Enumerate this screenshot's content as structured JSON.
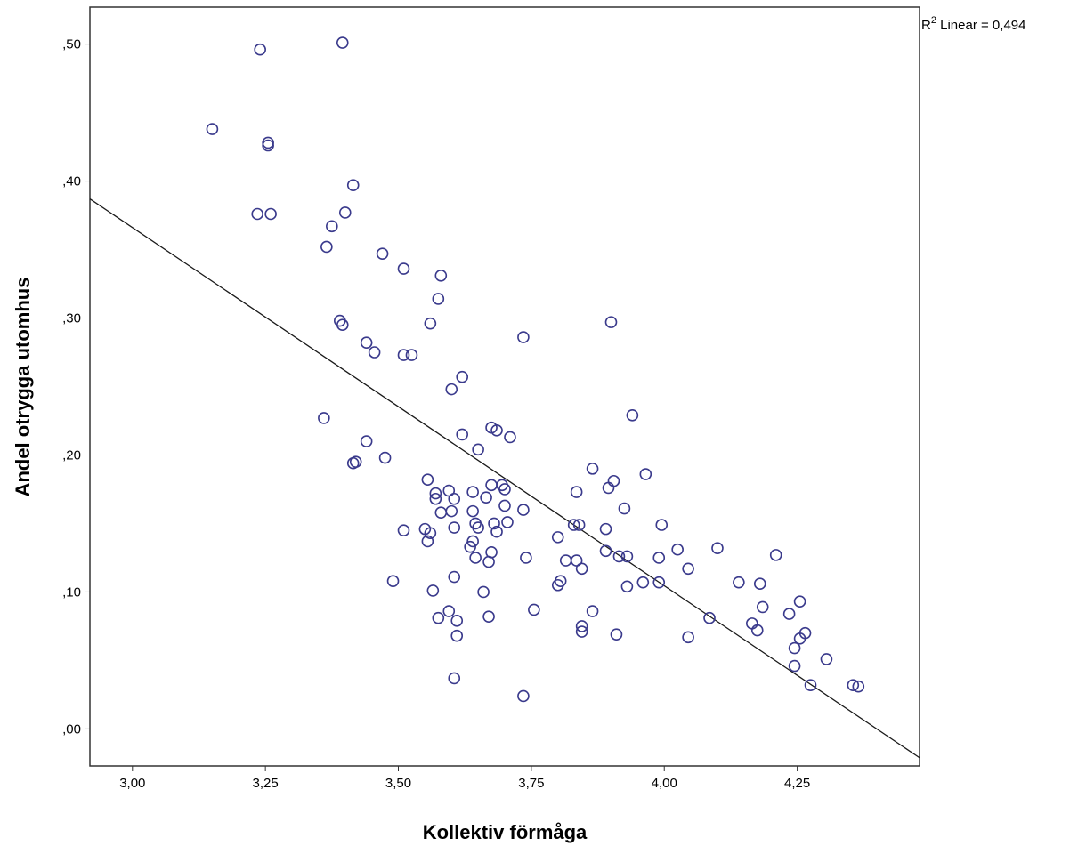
{
  "chart_data": {
    "type": "scatter",
    "xlabel": "Kollektiv förmåga",
    "ylabel": "Andel otrygga utomhus",
    "xlim": [
      2.92,
      4.48
    ],
    "ylim": [
      -0.027,
      0.527
    ],
    "x_ticks": [
      3.0,
      3.25,
      3.5,
      3.75,
      4.0,
      4.25
    ],
    "x_tick_labels": [
      "3,00",
      "3,25",
      "3,50",
      "3,75",
      "4,00",
      "4,25"
    ],
    "y_ticks": [
      0.0,
      0.1,
      0.2,
      0.3,
      0.4,
      0.5
    ],
    "y_tick_labels": [
      ",00",
      ",10",
      ",20",
      ",30",
      ",40",
      ",50"
    ],
    "grid": false,
    "marker": "open-circle",
    "marker_color": "#3a3a8c",
    "fit_line_color": "#1a1a1a",
    "annotation": {
      "label": "R",
      "superscript": "2",
      "text": " Linear = 0,494"
    },
    "fit_line": {
      "x": [
        2.92,
        4.48
      ],
      "y": [
        0.387,
        -0.021
      ]
    },
    "points": [
      [
        3.15,
        0.438
      ],
      [
        3.24,
        0.496
      ],
      [
        3.395,
        0.501
      ],
      [
        3.255,
        0.428
      ],
      [
        3.255,
        0.426
      ],
      [
        3.235,
        0.376
      ],
      [
        3.26,
        0.376
      ],
      [
        3.415,
        0.397
      ],
      [
        3.4,
        0.377
      ],
      [
        3.375,
        0.367
      ],
      [
        3.365,
        0.352
      ],
      [
        3.47,
        0.347
      ],
      [
        3.51,
        0.336
      ],
      [
        3.58,
        0.331
      ],
      [
        3.575,
        0.314
      ],
      [
        3.39,
        0.298
      ],
      [
        3.395,
        0.295
      ],
      [
        3.56,
        0.296
      ],
      [
        3.9,
        0.297
      ],
      [
        3.735,
        0.286
      ],
      [
        3.44,
        0.282
      ],
      [
        3.455,
        0.275
      ],
      [
        3.51,
        0.273
      ],
      [
        3.525,
        0.273
      ],
      [
        3.62,
        0.257
      ],
      [
        3.6,
        0.248
      ],
      [
        3.94,
        0.229
      ],
      [
        3.36,
        0.227
      ],
      [
        3.675,
        0.22
      ],
      [
        3.685,
        0.218
      ],
      [
        3.62,
        0.215
      ],
      [
        3.71,
        0.213
      ],
      [
        3.44,
        0.21
      ],
      [
        3.65,
        0.204
      ],
      [
        3.475,
        0.198
      ],
      [
        3.415,
        0.194
      ],
      [
        3.42,
        0.195
      ],
      [
        3.865,
        0.19
      ],
      [
        3.965,
        0.186
      ],
      [
        3.555,
        0.182
      ],
      [
        3.905,
        0.181
      ],
      [
        3.895,
        0.176
      ],
      [
        3.675,
        0.178
      ],
      [
        3.695,
        0.178
      ],
      [
        3.57,
        0.172
      ],
      [
        3.595,
        0.174
      ],
      [
        3.64,
        0.173
      ],
      [
        3.7,
        0.175
      ],
      [
        3.835,
        0.173
      ],
      [
        3.57,
        0.168
      ],
      [
        3.605,
        0.168
      ],
      [
        3.665,
        0.169
      ],
      [
        3.7,
        0.163
      ],
      [
        3.925,
        0.161
      ],
      [
        3.58,
        0.158
      ],
      [
        3.6,
        0.159
      ],
      [
        3.64,
        0.159
      ],
      [
        3.735,
        0.16
      ],
      [
        3.68,
        0.15
      ],
      [
        3.705,
        0.151
      ],
      [
        3.645,
        0.15
      ],
      [
        3.83,
        0.149
      ],
      [
        3.84,
        0.149
      ],
      [
        3.995,
        0.149
      ],
      [
        3.55,
        0.146
      ],
      [
        3.56,
        0.143
      ],
      [
        3.605,
        0.147
      ],
      [
        3.65,
        0.147
      ],
      [
        3.685,
        0.144
      ],
      [
        3.89,
        0.146
      ],
      [
        3.51,
        0.145
      ],
      [
        3.555,
        0.137
      ],
      [
        3.64,
        0.137
      ],
      [
        3.635,
        0.133
      ],
      [
        3.8,
        0.14
      ],
      [
        4.1,
        0.132
      ],
      [
        4.025,
        0.131
      ],
      [
        3.89,
        0.13
      ],
      [
        3.675,
        0.129
      ],
      [
        3.645,
        0.125
      ],
      [
        3.74,
        0.125
      ],
      [
        3.915,
        0.126
      ],
      [
        3.93,
        0.126
      ],
      [
        3.99,
        0.125
      ],
      [
        4.21,
        0.127
      ],
      [
        3.815,
        0.123
      ],
      [
        3.835,
        0.123
      ],
      [
        3.67,
        0.122
      ],
      [
        3.845,
        0.117
      ],
      [
        4.045,
        0.117
      ],
      [
        3.605,
        0.111
      ],
      [
        3.805,
        0.108
      ],
      [
        3.8,
        0.105
      ],
      [
        3.96,
        0.107
      ],
      [
        3.99,
        0.107
      ],
      [
        4.14,
        0.107
      ],
      [
        4.18,
        0.106
      ],
      [
        3.49,
        0.108
      ],
      [
        3.565,
        0.101
      ],
      [
        3.66,
        0.1
      ],
      [
        3.93,
        0.104
      ],
      [
        4.255,
        0.093
      ],
      [
        4.185,
        0.089
      ],
      [
        3.755,
        0.087
      ],
      [
        3.865,
        0.086
      ],
      [
        3.595,
        0.086
      ],
      [
        3.575,
        0.081
      ],
      [
        3.61,
        0.079
      ],
      [
        3.67,
        0.082
      ],
      [
        4.085,
        0.081
      ],
      [
        4.235,
        0.084
      ],
      [
        4.165,
        0.077
      ],
      [
        4.175,
        0.072
      ],
      [
        3.845,
        0.075
      ],
      [
        3.845,
        0.071
      ],
      [
        3.91,
        0.069
      ],
      [
        3.61,
        0.068
      ],
      [
        4.045,
        0.067
      ],
      [
        4.265,
        0.07
      ],
      [
        4.255,
        0.066
      ],
      [
        4.245,
        0.059
      ],
      [
        4.305,
        0.051
      ],
      [
        4.245,
        0.046
      ],
      [
        3.605,
        0.037
      ],
      [
        4.275,
        0.032
      ],
      [
        4.355,
        0.032
      ],
      [
        4.365,
        0.031
      ],
      [
        3.735,
        0.024
      ]
    ]
  }
}
